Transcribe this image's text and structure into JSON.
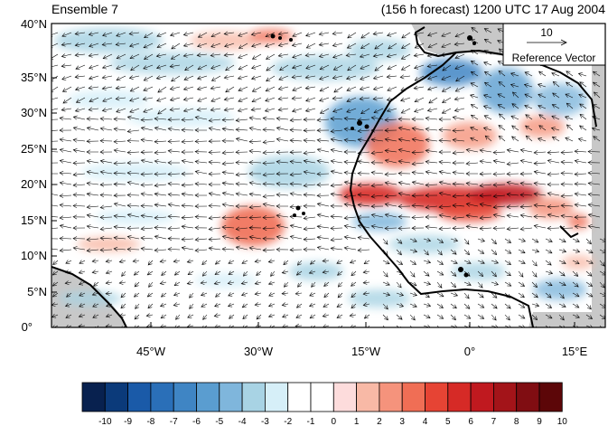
{
  "map": {
    "title_left": "Ensemble 7",
    "title_right": "(156 h forecast) 1200 UTC 17 Aug 2004",
    "lat_labels": [
      "0°",
      "5°N",
      "10°N",
      "15°N",
      "20°N",
      "25°N",
      "30°N",
      "35°N",
      "40°N"
    ],
    "lon_labels": [
      "45°W",
      "30°W",
      "15°W",
      "0°",
      "15°E"
    ],
    "reference_vector": {
      "value": "10",
      "label": "Reference Vector"
    },
    "colorbar": {
      "labels": [
        "-10",
        "-9",
        "-8",
        "-7",
        "-6",
        "-5",
        "-4",
        "-3",
        "-2",
        "-1",
        "0",
        "1",
        "2",
        "3",
        "4",
        "5",
        "6",
        "7",
        "8",
        "9",
        "10"
      ],
      "colors": [
        "#08214f",
        "#0b3a7a",
        "#1a5aa8",
        "#2a6fb8",
        "#3f85c4",
        "#5a9dd0",
        "#7fb6dc",
        "#a8d3e4",
        "#d6eff8",
        "#ffffff",
        "#ffffff",
        "#fddcdc",
        "#f8b9a6",
        "#f5937c",
        "#f06e55",
        "#e64434",
        "#d62a26",
        "#c0191f",
        "#a31419",
        "#800d12",
        "#5c0608"
      ]
    },
    "colors": {
      "land": "#c8c8c8",
      "ocean": "#ffffff",
      "coast": "#000000",
      "vector": "#000000"
    }
  }
}
